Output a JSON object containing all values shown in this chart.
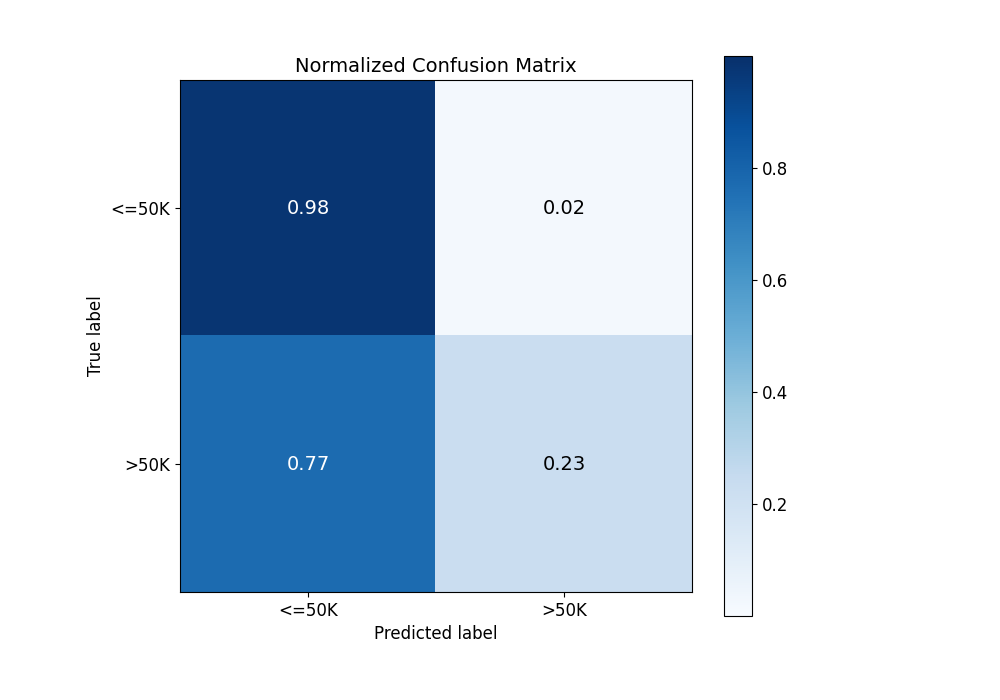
{
  "title": "Normalized Confusion Matrix",
  "matrix": [
    [
      0.98,
      0.02
    ],
    [
      0.77,
      0.23
    ]
  ],
  "classes": [
    "<=50K",
    ">50K"
  ],
  "xlabel": "Predicted label",
  "ylabel": "True label",
  "cmap": "Blues",
  "vmin": 0.0,
  "vmax": 1.0,
  "text_color_threshold": 0.5,
  "text_light": "white",
  "text_dark": "black",
  "fontsize_annot": 14,
  "fontsize_labels": 12,
  "fontsize_title": 14,
  "figsize": [
    10,
    7
  ],
  "colorbar_ticks": [
    0.2,
    0.4,
    0.6,
    0.8
  ]
}
